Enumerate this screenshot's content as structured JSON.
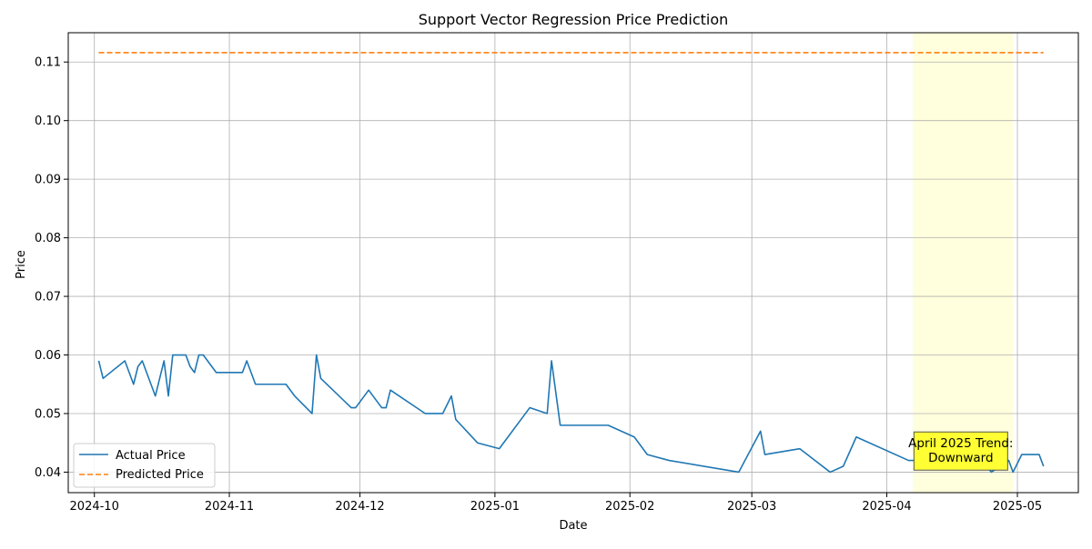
{
  "chart_data": {
    "type": "line",
    "title": "Support Vector Regression Price Prediction",
    "xlabel": "Date",
    "ylabel": "Price",
    "xlim": [
      "2024-09-25",
      "2025-05-15"
    ],
    "ylim": [
      0.0365,
      0.115
    ],
    "grid": true,
    "legend_position": "lower-left",
    "x_ticks": [
      "2024-10-01",
      "2024-11-01",
      "2024-12-01",
      "2025-01-01",
      "2025-02-01",
      "2025-03-01",
      "2025-04-01",
      "2025-05-01"
    ],
    "x_tick_labels": [
      "2024-10",
      "2024-11",
      "2024-12",
      "2025-01",
      "2025-02",
      "2025-03",
      "2025-04",
      "2025-05"
    ],
    "y_ticks": [
      0.04,
      0.05,
      0.06,
      0.07,
      0.08,
      0.09,
      0.1,
      0.11
    ],
    "y_tick_labels": [
      "0.04",
      "0.05",
      "0.06",
      "0.07",
      "0.08",
      "0.09",
      "0.10",
      "0.11"
    ],
    "series": [
      {
        "name": "Actual Price",
        "color": "#1f77b4",
        "style": "solid",
        "points": [
          [
            "2024-10-02",
            0.059
          ],
          [
            "2024-10-03",
            0.056
          ],
          [
            "2024-10-08",
            0.059
          ],
          [
            "2024-10-10",
            0.055
          ],
          [
            "2024-10-11",
            0.058
          ],
          [
            "2024-10-12",
            0.059
          ],
          [
            "2024-10-15",
            0.053
          ],
          [
            "2024-10-17",
            0.059
          ],
          [
            "2024-10-18",
            0.053
          ],
          [
            "2024-10-19",
            0.06
          ],
          [
            "2024-10-22",
            0.06
          ],
          [
            "2024-10-23",
            0.058
          ],
          [
            "2024-10-24",
            0.057
          ],
          [
            "2024-10-25",
            0.06
          ],
          [
            "2024-10-26",
            0.06
          ],
          [
            "2024-10-29",
            0.057
          ],
          [
            "2024-11-04",
            0.057
          ],
          [
            "2024-11-05",
            0.059
          ],
          [
            "2024-11-07",
            0.055
          ],
          [
            "2024-11-14",
            0.055
          ],
          [
            "2024-11-16",
            0.053
          ],
          [
            "2024-11-20",
            0.05
          ],
          [
            "2024-11-21",
            0.06
          ],
          [
            "2024-11-22",
            0.056
          ],
          [
            "2024-11-29",
            0.051
          ],
          [
            "2024-11-30",
            0.051
          ],
          [
            "2024-12-03",
            0.054
          ],
          [
            "2024-12-06",
            0.051
          ],
          [
            "2024-12-07",
            0.051
          ],
          [
            "2024-12-08",
            0.054
          ],
          [
            "2024-12-16",
            0.05
          ],
          [
            "2024-12-20",
            0.05
          ],
          [
            "2024-12-22",
            0.053
          ],
          [
            "2024-12-23",
            0.049
          ],
          [
            "2024-12-28",
            0.045
          ],
          [
            "2025-01-02",
            0.044
          ],
          [
            "2025-01-09",
            0.051
          ],
          [
            "2025-01-13",
            0.05
          ],
          [
            "2025-01-14",
            0.059
          ],
          [
            "2025-01-16",
            0.048
          ],
          [
            "2025-01-27",
            0.048
          ],
          [
            "2025-02-02",
            0.046
          ],
          [
            "2025-02-05",
            0.043
          ],
          [
            "2025-02-10",
            0.042
          ],
          [
            "2025-02-26",
            0.04
          ],
          [
            "2025-03-03",
            0.047
          ],
          [
            "2025-03-04",
            0.043
          ],
          [
            "2025-03-12",
            0.044
          ],
          [
            "2025-03-19",
            0.04
          ],
          [
            "2025-03-22",
            0.041
          ],
          [
            "2025-03-25",
            0.046
          ],
          [
            "2025-04-06",
            0.042
          ],
          [
            "2025-04-17",
            0.042
          ],
          [
            "2025-04-24",
            0.041
          ],
          [
            "2025-04-25",
            0.04
          ],
          [
            "2025-04-29",
            0.042
          ],
          [
            "2025-04-30",
            0.04
          ],
          [
            "2025-05-02",
            0.043
          ],
          [
            "2025-05-06",
            0.043
          ],
          [
            "2025-05-07",
            0.041
          ]
        ]
      },
      {
        "name": "Predicted Price",
        "color": "#ff7f0e",
        "style": "dashed",
        "points": [
          [
            "2024-10-02",
            0.1116
          ],
          [
            "2025-05-07",
            0.1116
          ]
        ]
      }
    ],
    "highlight": {
      "start": "2025-04-07",
      "end": "2025-04-30",
      "color": "#ffffdd"
    },
    "annotation": {
      "lines": [
        "April 2025 Trend:",
        "Downward"
      ],
      "anchor_date": "2025-04-18",
      "anchor_value": 0.0436,
      "box_color": "#ffff33",
      "border_color": "#555555"
    }
  }
}
